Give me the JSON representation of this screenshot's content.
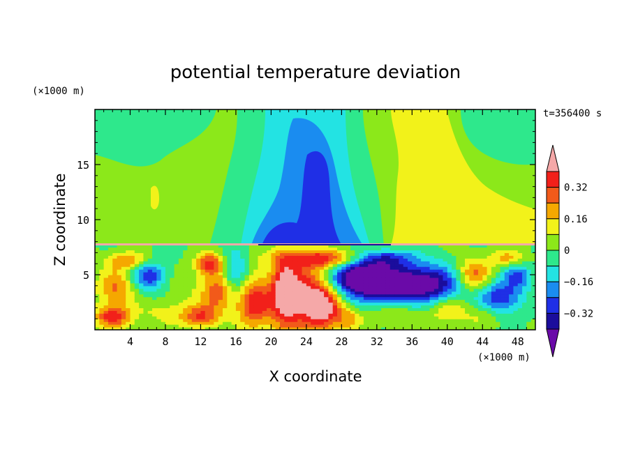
{
  "chart_data": {
    "type": "heatmap",
    "title": "potential temperature deviation",
    "xlabel": "X coordinate",
    "ylabel": "Z coordinate",
    "x_unit": "(×1000 m)",
    "y_unit": "(×1000 m)",
    "time_label": "t=356400 s",
    "xlim": [
      0,
      50
    ],
    "ylim": [
      0,
      20
    ],
    "x_ticks": [
      4,
      8,
      12,
      16,
      20,
      24,
      28,
      32,
      36,
      40,
      44,
      48
    ],
    "y_ticks": [
      5,
      10,
      15
    ],
    "colorbar": {
      "levels": [
        -0.4,
        -0.32,
        -0.24,
        -0.16,
        -0.08,
        0,
        0.08,
        0.16,
        0.24,
        0.32,
        0.4
      ],
      "tick_values": [
        0.32,
        0.16,
        0,
        -0.16,
        -0.32
      ],
      "tick_labels": [
        "0.32",
        "0.16",
        "0",
        "−0.16",
        "−0.32"
      ],
      "colors": [
        "#6a0aa8",
        "#1b0d9c",
        "#1f2fe6",
        "#1a8cf0",
        "#23e3e3",
        "#2ee88c",
        "#8ce81a",
        "#f2f21a",
        "#f5a800",
        "#f25a1a",
        "#f2201a",
        "#f5a8a8"
      ],
      "extend": "both"
    },
    "field": {
      "description_free": true,
      "mid_level_z": 7.7,
      "upper_regions": [
        {
          "x_center": 26,
          "z_center": 12,
          "value": -0.32
        },
        {
          "x_center": 25,
          "z_center": 14,
          "value": -0.16
        },
        {
          "x_center": 40,
          "z_center": 14,
          "value": 0.16
        },
        {
          "x_center": 8,
          "z_center": 17,
          "value": 0.08
        }
      ],
      "lower_regions": [
        {
          "x_center": 24,
          "z_center": 3,
          "value": 0.4
        },
        {
          "x_center": 33,
          "z_center": 4,
          "value": -0.4
        },
        {
          "x_center": 3,
          "z_center": 4,
          "value": 0.24
        }
      ]
    }
  }
}
